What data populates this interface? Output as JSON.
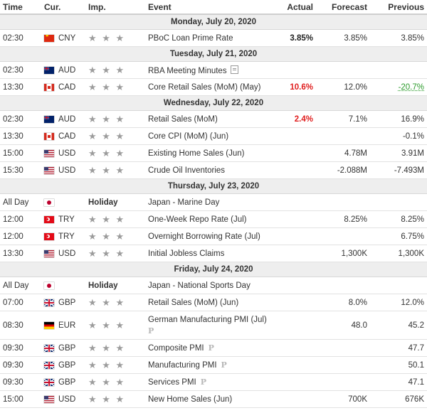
{
  "header": {
    "time": "Time",
    "cur": "Cur.",
    "imp": "Imp.",
    "event": "Event",
    "actual": "Actual",
    "forecast": "Forecast",
    "previous": "Previous"
  },
  "colors": {
    "actual_red": "#e01e1e",
    "previous_green": "#2b9b2b",
    "stars": "#9c9c9c",
    "day_bg": "#eeeeee"
  },
  "stars_glyph": "★ ★ ★",
  "rows": [
    {
      "kind": "day",
      "label": "Monday, July 20, 2020"
    },
    {
      "kind": "event",
      "time": "02:30",
      "flag": "cn",
      "cur": "CNY",
      "event": "PBoC Loan Prime Rate",
      "actual": "3.85%",
      "actual_style": "black-bold",
      "forecast": "3.85%",
      "previous": "3.85%"
    },
    {
      "kind": "day",
      "label": "Tuesday, July 21, 2020"
    },
    {
      "kind": "event",
      "time": "02:30",
      "flag": "au",
      "cur": "AUD",
      "event": "RBA Meeting Minutes",
      "icon": "document-icon",
      "actual": "",
      "forecast": "",
      "previous": ""
    },
    {
      "kind": "event",
      "time": "13:30",
      "flag": "ca",
      "cur": "CAD",
      "event": "Core Retail Sales (MoM) (May)",
      "actual": "10.6%",
      "actual_style": "red",
      "forecast": "12.0%",
      "previous": "-20.7%",
      "previous_style": "green"
    },
    {
      "kind": "day",
      "label": "Wednesday, July 22, 2020"
    },
    {
      "kind": "event",
      "time": "02:30",
      "flag": "au",
      "cur": "AUD",
      "event": "Retail Sales (MoM)",
      "actual": "2.4%",
      "actual_style": "red",
      "forecast": "7.1%",
      "previous": "16.9%"
    },
    {
      "kind": "event",
      "time": "13:30",
      "flag": "ca",
      "cur": "CAD",
      "event": "Core CPI (MoM) (Jun)",
      "actual": "",
      "forecast": "",
      "previous": "-0.1%"
    },
    {
      "kind": "event",
      "time": "15:00",
      "flag": "us",
      "cur": "USD",
      "event": "Existing Home Sales (Jun)",
      "actual": "",
      "forecast": "4.78M",
      "previous": "3.91M"
    },
    {
      "kind": "event",
      "time": "15:30",
      "flag": "us",
      "cur": "USD",
      "event": "Crude Oil Inventories",
      "actual": "",
      "forecast": "-2.088M",
      "previous": "-7.493M"
    },
    {
      "kind": "day",
      "label": "Thursday, July 23, 2020"
    },
    {
      "kind": "holiday",
      "time": "All Day",
      "flag": "jp",
      "holiday": "Holiday",
      "event": "Japan - Marine Day"
    },
    {
      "kind": "event",
      "time": "12:00",
      "flag": "tr",
      "cur": "TRY",
      "event": "One-Week Repo Rate (Jul)",
      "actual": "",
      "forecast": "8.25%",
      "previous": "8.25%"
    },
    {
      "kind": "event",
      "time": "12:00",
      "flag": "tr",
      "cur": "TRY",
      "event": "Overnight Borrowing Rate (Jul)",
      "actual": "",
      "forecast": "",
      "previous": "6.75%"
    },
    {
      "kind": "event",
      "time": "13:30",
      "flag": "us",
      "cur": "USD",
      "event": "Initial Jobless Claims",
      "actual": "",
      "forecast": "1,300K",
      "previous": "1,300K"
    },
    {
      "kind": "day",
      "label": "Friday, July 24, 2020"
    },
    {
      "kind": "holiday",
      "time": "All Day",
      "flag": "jp",
      "holiday": "Holiday",
      "event": "Japan - National Sports Day"
    },
    {
      "kind": "event",
      "time": "07:00",
      "flag": "gb",
      "cur": "GBP",
      "event": "Retail Sales (MoM) (Jun)",
      "actual": "",
      "forecast": "8.0%",
      "previous": "12.0%"
    },
    {
      "kind": "event",
      "time": "08:30",
      "flag": "de",
      "cur": "EUR",
      "event": "German Manufacturing PMI (Jul)",
      "icon": "preliminary-icon",
      "wrap": true,
      "actual": "",
      "forecast": "48.0",
      "previous": "45.2"
    },
    {
      "kind": "event",
      "time": "09:30",
      "flag": "gb",
      "cur": "GBP",
      "event": "Composite PMI",
      "icon": "preliminary-icon",
      "actual": "",
      "forecast": "",
      "previous": "47.7"
    },
    {
      "kind": "event",
      "time": "09:30",
      "flag": "gb",
      "cur": "GBP",
      "event": "Manufacturing PMI",
      "icon": "preliminary-icon",
      "actual": "",
      "forecast": "",
      "previous": "50.1"
    },
    {
      "kind": "event",
      "time": "09:30",
      "flag": "gb",
      "cur": "GBP",
      "event": "Services PMI",
      "icon": "preliminary-icon",
      "actual": "",
      "forecast": "",
      "previous": "47.1"
    },
    {
      "kind": "event",
      "time": "15:00",
      "flag": "us",
      "cur": "USD",
      "event": "New Home Sales (Jun)",
      "actual": "",
      "forecast": "700K",
      "previous": "676K"
    }
  ],
  "icon_glyphs": {
    "preliminary-icon": "P"
  }
}
